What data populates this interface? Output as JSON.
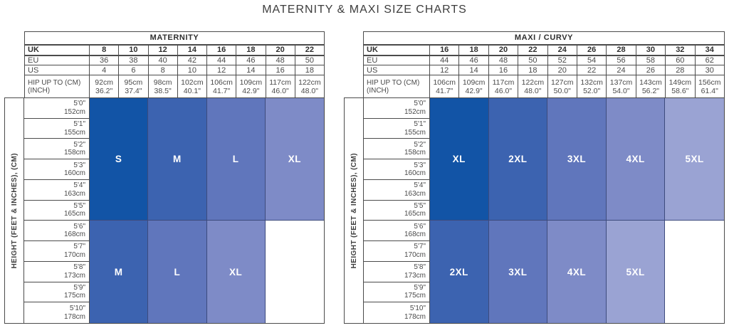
{
  "title": "MATERNITY & MAXI SIZE CHARTS",
  "height_axis_label": "HEIGHT (FEET & INCHES), (CM)",
  "labels": {
    "uk": "UK",
    "eu": "EU",
    "us": "US",
    "hip_line1": "HIP UP TO (CM)",
    "hip_line2": "(INCH)"
  },
  "colors": {
    "shade1": "#1254a6",
    "shade2": "#3c63b0",
    "shade3": "#6076bc",
    "shade4": "#7e8bc7",
    "shade5": "#9aa3d3",
    "grid_border": "#4b4b4b",
    "block_border": "#3d4b7d",
    "block_text": "#ffffff",
    "text_dark": "#2f2f2f",
    "text_gray": "#4a4a4a"
  },
  "heights": [
    {
      "ft": "5'0\"",
      "cm": "152cm"
    },
    {
      "ft": "5'1\"",
      "cm": "155cm"
    },
    {
      "ft": "5'2\"",
      "cm": "158cm"
    },
    {
      "ft": "5'3\"",
      "cm": "160cm"
    },
    {
      "ft": "5'4\"",
      "cm": "163cm"
    },
    {
      "ft": "5'5\"",
      "cm": "165cm"
    },
    {
      "ft": "5'6\"",
      "cm": "168cm"
    },
    {
      "ft": "5'7\"",
      "cm": "170cm"
    },
    {
      "ft": "5'8\"",
      "cm": "173cm"
    },
    {
      "ft": "5'9\"",
      "cm": "175cm"
    },
    {
      "ft": "5'10\"",
      "cm": "178cm"
    }
  ],
  "charts": [
    {
      "name": "MATERNITY",
      "uk": [
        "8",
        "10",
        "12",
        "14",
        "16",
        "18",
        "20",
        "22"
      ],
      "eu": [
        "36",
        "38",
        "40",
        "42",
        "44",
        "46",
        "48",
        "50"
      ],
      "us": [
        "4",
        "6",
        "8",
        "10",
        "12",
        "14",
        "16",
        "18"
      ],
      "hip_cm": [
        "92cm",
        "95cm",
        "98cm",
        "102cm",
        "106cm",
        "109cm",
        "117cm",
        "122cm"
      ],
      "hip_in": [
        "36.2\"",
        "37.4\"",
        "38.5\"",
        "40.1\"",
        "41.7\"",
        "42.9\"",
        "46.0\"",
        "48.0\""
      ],
      "blocks_top": [
        {
          "label": "S",
          "shade": "shade1",
          "span": 2
        },
        {
          "label": "M",
          "shade": "shade2",
          "span": 2
        },
        {
          "label": "L",
          "shade": "shade3",
          "span": 2
        },
        {
          "label": "XL",
          "shade": "shade4",
          "span": 2
        }
      ],
      "blocks_bottom": [
        {
          "label": "M",
          "shade": "shade2",
          "span": 2
        },
        {
          "label": "L",
          "shade": "shade3",
          "span": 2
        },
        {
          "label": "XL",
          "shade": "shade4",
          "span": 2
        },
        {
          "label": "",
          "shade": "white",
          "span": 2
        }
      ]
    },
    {
      "name": "MAXI / CURVY",
      "uk": [
        "16",
        "18",
        "20",
        "22",
        "24",
        "26",
        "28",
        "30",
        "32",
        "34"
      ],
      "eu": [
        "44",
        "46",
        "48",
        "50",
        "52",
        "54",
        "56",
        "58",
        "60",
        "62"
      ],
      "us": [
        "12",
        "14",
        "16",
        "18",
        "20",
        "22",
        "24",
        "26",
        "28",
        "30"
      ],
      "hip_cm": [
        "106cm",
        "109cm",
        "117cm",
        "122cm",
        "127cm",
        "132cm",
        "137cm",
        "143cm",
        "149cm",
        "156cm"
      ],
      "hip_in": [
        "41.7\"",
        "42.9\"",
        "46.0\"",
        "48.0\"",
        "50.0\"",
        "52.0\"",
        "54.0\"",
        "56.2\"",
        "58.6\"",
        "61.4\""
      ],
      "blocks_top": [
        {
          "label": "XL",
          "shade": "shade1",
          "span": 2
        },
        {
          "label": "2XL",
          "shade": "shade2",
          "span": 2
        },
        {
          "label": "3XL",
          "shade": "shade3",
          "span": 2
        },
        {
          "label": "4XL",
          "shade": "shade4",
          "span": 2
        },
        {
          "label": "5XL",
          "shade": "shade5",
          "span": 2
        }
      ],
      "blocks_bottom": [
        {
          "label": "2XL",
          "shade": "shade2",
          "span": 2
        },
        {
          "label": "3XL",
          "shade": "shade3",
          "span": 2
        },
        {
          "label": "4XL",
          "shade": "shade4",
          "span": 2
        },
        {
          "label": "5XL",
          "shade": "shade5",
          "span": 2
        },
        {
          "label": "",
          "shade": "white",
          "span": 2
        }
      ]
    }
  ],
  "chart_data": [
    {
      "type": "table",
      "title": "MATERNITY",
      "uk_sizes": [
        8,
        10,
        12,
        14,
        16,
        18,
        20,
        22
      ],
      "eu_sizes": [
        36,
        38,
        40,
        42,
        44,
        46,
        48,
        50
      ],
      "us_sizes": [
        4,
        6,
        8,
        10,
        12,
        14,
        16,
        18
      ],
      "hip_up_to_cm": [
        92,
        95,
        98,
        102,
        106,
        109,
        117,
        122
      ],
      "hip_up_to_inch": [
        36.2,
        37.4,
        38.5,
        40.1,
        41.7,
        42.9,
        46.0,
        48.0
      ],
      "height_rows_ft": [
        "5'0\"",
        "5'1\"",
        "5'2\"",
        "5'3\"",
        "5'4\"",
        "5'5\"",
        "5'6\"",
        "5'7\"",
        "5'8\"",
        "5'9\"",
        "5'10\""
      ],
      "height_rows_cm": [
        152,
        155,
        158,
        160,
        163,
        165,
        168,
        170,
        173,
        175,
        178
      ],
      "size_bands": [
        {
          "height_range": "5'0\"-5'5\" (152-165cm)",
          "mapping": [
            {
              "size": "S",
              "uk": "8-10"
            },
            {
              "size": "M",
              "uk": "12-14"
            },
            {
              "size": "L",
              "uk": "16-18"
            },
            {
              "size": "XL",
              "uk": "20-22"
            }
          ]
        },
        {
          "height_range": "5'6\"-5'10\" (168-178cm)",
          "mapping": [
            {
              "size": "M",
              "uk": "8-10"
            },
            {
              "size": "L",
              "uk": "12-14"
            },
            {
              "size": "XL",
              "uk": "16-18"
            },
            {
              "size": "",
              "uk": "20-22"
            }
          ]
        }
      ]
    },
    {
      "type": "table",
      "title": "MAXI / CURVY",
      "uk_sizes": [
        16,
        18,
        20,
        22,
        24,
        26,
        28,
        30,
        32,
        34
      ],
      "eu_sizes": [
        44,
        46,
        48,
        50,
        52,
        54,
        56,
        58,
        60,
        62
      ],
      "us_sizes": [
        12,
        14,
        16,
        18,
        20,
        22,
        24,
        26,
        28,
        30
      ],
      "hip_up_to_cm": [
        106,
        109,
        117,
        122,
        127,
        132,
        137,
        143,
        149,
        156
      ],
      "hip_up_to_inch": [
        41.7,
        42.9,
        46.0,
        48.0,
        50.0,
        52.0,
        54.0,
        56.2,
        58.6,
        61.4
      ],
      "height_rows_ft": [
        "5'0\"",
        "5'1\"",
        "5'2\"",
        "5'3\"",
        "5'4\"",
        "5'5\"",
        "5'6\"",
        "5'7\"",
        "5'8\"",
        "5'9\"",
        "5'10\""
      ],
      "height_rows_cm": [
        152,
        155,
        158,
        160,
        163,
        165,
        168,
        170,
        173,
        175,
        178
      ],
      "size_bands": [
        {
          "height_range": "5'0\"-5'5\" (152-165cm)",
          "mapping": [
            {
              "size": "XL",
              "uk": "16-18"
            },
            {
              "size": "2XL",
              "uk": "20-22"
            },
            {
              "size": "3XL",
              "uk": "24-26"
            },
            {
              "size": "4XL",
              "uk": "28-30"
            },
            {
              "size": "5XL",
              "uk": "32-34"
            }
          ]
        },
        {
          "height_range": "5'6\"-5'10\" (168-178cm)",
          "mapping": [
            {
              "size": "2XL",
              "uk": "16-18"
            },
            {
              "size": "3XL",
              "uk": "20-22"
            },
            {
              "size": "4XL",
              "uk": "24-26"
            },
            {
              "size": "5XL",
              "uk": "28-30"
            },
            {
              "size": "",
              "uk": "32-34"
            }
          ]
        }
      ]
    }
  ]
}
